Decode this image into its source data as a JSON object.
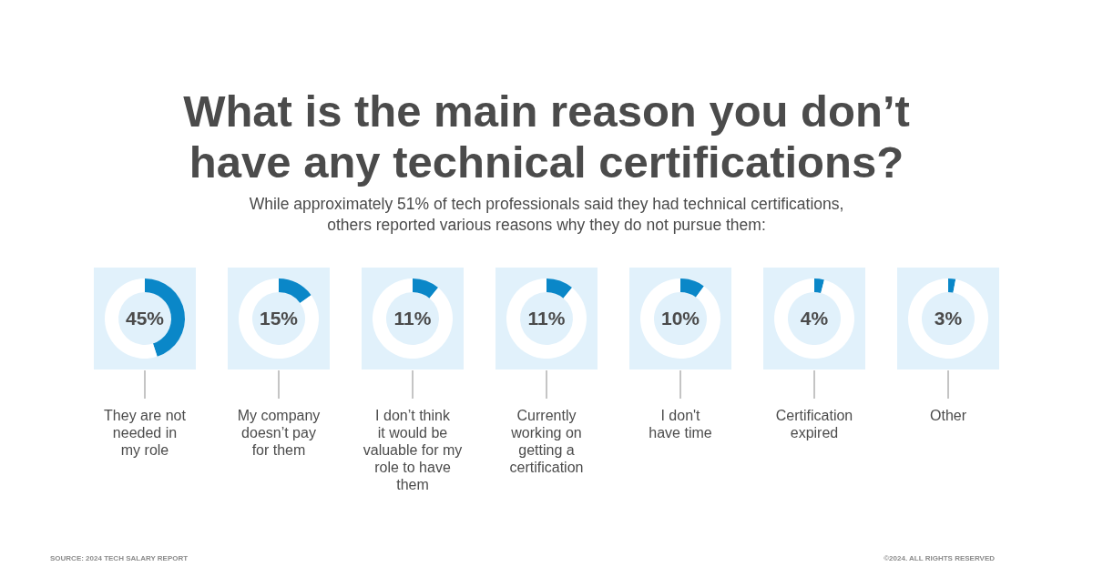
{
  "chart_data": [
    {
      "type": "other",
      "title": "What is the main reason you don’t\nhave any technical certifications?",
      "subtitle": "While approximately 51% of tech professionals said they had technical certifications,\nothers reported various reasons why they do not pursue them:",
      "annotations": [
        "SOURCE: 2024 TECH SALARY REPORT",
        "©2024. ALL RIGHTS RESERVED"
      ]
    },
    {
      "type": "donut",
      "title": "They are not\nneeded in\nmy role",
      "values": [
        45,
        55
      ],
      "colors": [
        "#0a87c8",
        "#ffffff"
      ],
      "value_labels": [
        "45%",
        null
      ]
    },
    {
      "type": "donut",
      "title": "My company\ndoesn’t pay\nfor them",
      "values": [
        15,
        85
      ],
      "colors": [
        "#0a87c8",
        "#ffffff"
      ],
      "value_labels": [
        "15%",
        null
      ]
    },
    {
      "type": "donut",
      "title": "I don’t think\nit would be\nvaluable for my\nrole to have\nthem",
      "values": [
        11,
        89
      ],
      "colors": [
        "#0a87c8",
        "#ffffff"
      ],
      "value_labels": [
        "11%",
        null
      ]
    },
    {
      "type": "donut",
      "title": "Currently\nworking on\ngetting a\ncertification",
      "values": [
        11,
        89
      ],
      "colors": [
        "#0a87c8",
        "#ffffff"
      ],
      "value_labels": [
        "11%",
        null
      ]
    },
    {
      "type": "donut",
      "title": "I don't\nhave time",
      "values": [
        10,
        90
      ],
      "colors": [
        "#0a87c8",
        "#ffffff"
      ],
      "value_labels": [
        "10%",
        null
      ]
    },
    {
      "type": "donut",
      "title": "Certification\nexpired",
      "values": [
        4,
        96
      ],
      "colors": [
        "#0a87c8",
        "#ffffff"
      ],
      "value_labels": [
        "4%",
        null
      ]
    },
    {
      "type": "donut",
      "title": "Other",
      "values": [
        3,
        97
      ],
      "colors": [
        "#0a87c8",
        "#ffffff"
      ],
      "value_labels": [
        "3%",
        null
      ]
    }
  ]
}
